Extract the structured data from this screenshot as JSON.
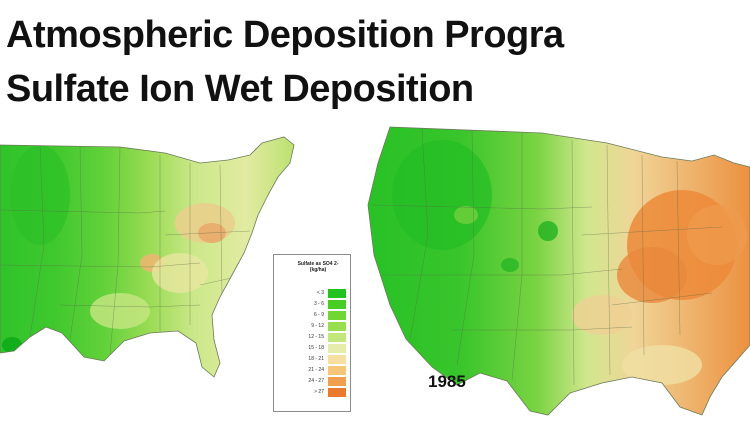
{
  "title_line1": "Atmospheric Deposition Progra",
  "title_line2": "Sulfate Ion Wet Deposition",
  "year_right": "1985",
  "legend": {
    "title": "Sulfate as SO4 2- (kg/ha)",
    "items": [
      {
        "label": "< 3",
        "color": "#22c321"
      },
      {
        "label": "3 - 6",
        "color": "#48cc26"
      },
      {
        "label": "6 - 9",
        "color": "#70d634"
      },
      {
        "label": "9 - 12",
        "color": "#98df50"
      },
      {
        "label": "12 - 15",
        "color": "#c2e77c"
      },
      {
        "label": "15 - 18",
        "color": "#e6edac"
      },
      {
        "label": "18 - 21",
        "color": "#f6dfa0"
      },
      {
        "label": "21 - 24",
        "color": "#f5c67a"
      },
      {
        "label": "24 - 27",
        "color": "#ef9f4e"
      },
      {
        "label": "> 27",
        "color": "#e9792d"
      }
    ]
  },
  "colors": {
    "green_low": "#3cc72c",
    "green_mid": "#8fd84a",
    "yellow": "#e9eda9",
    "orange": "#ed8d3d",
    "state_lines": "#5a6a4a"
  }
}
